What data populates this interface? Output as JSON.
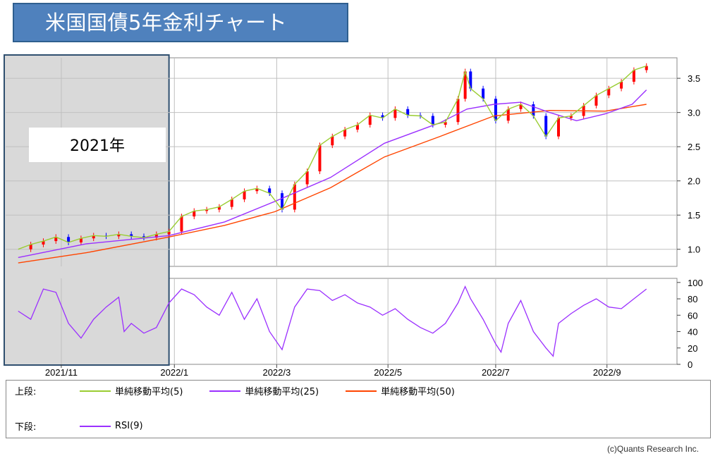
{
  "title": "米国国債5年金利チャート",
  "highlight_label": "2021年",
  "legend": {
    "upper_key": "上段:",
    "lower_key": "下段:",
    "upper_items": [
      {
        "label": "単純移動平均(5)",
        "color": "#9acd32"
      },
      {
        "label": "単純移動平均(25)",
        "color": "#9b30ff"
      },
      {
        "label": "単純移動平均(50)",
        "color": "#ff4500"
      }
    ],
    "lower_items": [
      {
        "label": "RSI(9)",
        "color": "#9b30ff"
      }
    ]
  },
  "credit": "(c)Quants Research Inc.",
  "colors": {
    "up_candle": "#ff0000",
    "down_candle": "#0000ff",
    "ma5": "#9acd32",
    "ma25": "#9b30ff",
    "ma50": "#ff4500",
    "rsi": "#9b30ff",
    "highlight": "#d9d9d9",
    "grid": "#c0c0c0"
  },
  "chart_data": [
    {
      "type": "line",
      "subtype": "candlestick_with_moving_averages",
      "x_ticks": [
        "2021/11",
        "2022/1",
        "2022/3",
        "2022/5",
        "2022/7",
        "2022/9"
      ],
      "x_tick_dates": [
        "2021-11-01",
        "2022-01-03",
        "2022-03-01",
        "2022-05-02",
        "2022-07-01",
        "2022-09-01"
      ],
      "x_range": [
        "2021-10-01",
        "2022-10-10"
      ],
      "y_ticks": [
        1.0,
        1.5,
        2.0,
        2.5,
        3.0,
        3.5
      ],
      "ylim": [
        0.75,
        3.8
      ],
      "highlight_range": [
        "2021-10-01",
        "2021-12-31"
      ],
      "close_series": {
        "name": "5年金利",
        "points": [
          [
            "2021-10-08",
            1.0
          ],
          [
            "2021-10-15",
            1.07
          ],
          [
            "2021-10-22",
            1.12
          ],
          [
            "2021-10-29",
            1.18
          ],
          [
            "2021-11-05",
            1.1
          ],
          [
            "2021-11-12",
            1.16
          ],
          [
            "2021-11-19",
            1.2
          ],
          [
            "2021-11-26",
            1.19
          ],
          [
            "2021-12-03",
            1.22
          ],
          [
            "2021-12-10",
            1.19
          ],
          [
            "2021-12-17",
            1.17
          ],
          [
            "2021-12-24",
            1.22
          ],
          [
            "2021-12-31",
            1.26
          ],
          [
            "2022-01-07",
            1.48
          ],
          [
            "2022-01-14",
            1.56
          ],
          [
            "2022-01-21",
            1.58
          ],
          [
            "2022-01-28",
            1.62
          ],
          [
            "2022-02-04",
            1.73
          ],
          [
            "2022-02-11",
            1.85
          ],
          [
            "2022-02-18",
            1.89
          ],
          [
            "2022-02-25",
            1.82
          ],
          [
            "2022-03-04",
            1.58
          ],
          [
            "2022-03-11",
            1.95
          ],
          [
            "2022-03-18",
            2.14
          ],
          [
            "2022-03-25",
            2.52
          ],
          [
            "2022-04-01",
            2.65
          ],
          [
            "2022-04-08",
            2.75
          ],
          [
            "2022-04-15",
            2.82
          ],
          [
            "2022-04-22",
            2.96
          ],
          [
            "2022-04-29",
            2.92
          ],
          [
            "2022-05-06",
            3.05
          ],
          [
            "2022-05-13",
            2.96
          ],
          [
            "2022-05-20",
            2.95
          ],
          [
            "2022-05-27",
            2.82
          ],
          [
            "2022-06-03",
            2.86
          ],
          [
            "2022-06-10",
            3.2
          ],
          [
            "2022-06-14",
            3.6
          ],
          [
            "2022-06-17",
            3.35
          ],
          [
            "2022-06-24",
            3.2
          ],
          [
            "2022-07-01",
            2.88
          ],
          [
            "2022-07-08",
            3.05
          ],
          [
            "2022-07-15",
            3.12
          ],
          [
            "2022-07-22",
            2.95
          ],
          [
            "2022-07-29",
            2.65
          ],
          [
            "2022-08-05",
            2.92
          ],
          [
            "2022-08-12",
            2.95
          ],
          [
            "2022-08-19",
            3.1
          ],
          [
            "2022-08-26",
            3.25
          ],
          [
            "2022-09-02",
            3.35
          ],
          [
            "2022-09-09",
            3.45
          ],
          [
            "2022-09-16",
            3.62
          ],
          [
            "2022-09-23",
            3.68
          ]
        ]
      },
      "series": [
        {
          "name": "単純移動平均(5)",
          "style": "follows_close"
        },
        {
          "name": "単純移動平均(25)",
          "points": [
            [
              "2021-10-08",
              0.88
            ],
            [
              "2021-11-15",
              1.08
            ],
            [
              "2021-12-31",
              1.2
            ],
            [
              "2022-01-31",
              1.4
            ],
            [
              "2022-02-28",
              1.7
            ],
            [
              "2022-03-31",
              2.05
            ],
            [
              "2022-04-30",
              2.55
            ],
            [
              "2022-05-31",
              2.85
            ],
            [
              "2022-06-15",
              3.05
            ],
            [
              "2022-06-30",
              3.12
            ],
            [
              "2022-07-15",
              3.15
            ],
            [
              "2022-07-31",
              3.0
            ],
            [
              "2022-08-15",
              2.88
            ],
            [
              "2022-08-31",
              2.98
            ],
            [
              "2022-09-15",
              3.12
            ],
            [
              "2022-09-23",
              3.33
            ]
          ]
        },
        {
          "name": "単純移動平均(50)",
          "points": [
            [
              "2021-10-08",
              0.8
            ],
            [
              "2021-11-15",
              0.95
            ],
            [
              "2021-12-31",
              1.18
            ],
            [
              "2022-01-31",
              1.35
            ],
            [
              "2022-02-28",
              1.55
            ],
            [
              "2022-03-31",
              1.9
            ],
            [
              "2022-04-30",
              2.35
            ],
            [
              "2022-05-31",
              2.65
            ],
            [
              "2022-06-30",
              2.95
            ],
            [
              "2022-07-31",
              3.03
            ],
            [
              "2022-08-31",
              3.02
            ],
            [
              "2022-09-23",
              3.12
            ]
          ]
        }
      ]
    },
    {
      "type": "line",
      "subtype": "oscillator",
      "y_ticks": [
        0,
        20,
        40,
        60,
        80,
        100
      ],
      "ylim": [
        0,
        105
      ],
      "series": [
        {
          "name": "RSI(9)",
          "points": [
            [
              "2021-10-08",
              65
            ],
            [
              "2021-10-15",
              55
            ],
            [
              "2021-10-22",
              92
            ],
            [
              "2021-10-29",
              88
            ],
            [
              "2021-11-05",
              50
            ],
            [
              "2021-11-12",
              32
            ],
            [
              "2021-11-19",
              55
            ],
            [
              "2021-11-26",
              70
            ],
            [
              "2021-12-03",
              82
            ],
            [
              "2021-12-06",
              40
            ],
            [
              "2021-12-10",
              50
            ],
            [
              "2021-12-17",
              38
            ],
            [
              "2021-12-24",
              45
            ],
            [
              "2021-12-31",
              75
            ],
            [
              "2022-01-07",
              92
            ],
            [
              "2022-01-14",
              85
            ],
            [
              "2022-01-21",
              70
            ],
            [
              "2022-01-28",
              60
            ],
            [
              "2022-02-04",
              88
            ],
            [
              "2022-02-11",
              55
            ],
            [
              "2022-02-18",
              80
            ],
            [
              "2022-02-25",
              40
            ],
            [
              "2022-03-04",
              18
            ],
            [
              "2022-03-11",
              70
            ],
            [
              "2022-03-18",
              92
            ],
            [
              "2022-03-25",
              90
            ],
            [
              "2022-04-01",
              78
            ],
            [
              "2022-04-08",
              85
            ],
            [
              "2022-04-15",
              75
            ],
            [
              "2022-04-22",
              70
            ],
            [
              "2022-04-29",
              60
            ],
            [
              "2022-05-06",
              68
            ],
            [
              "2022-05-13",
              55
            ],
            [
              "2022-05-20",
              45
            ],
            [
              "2022-05-27",
              38
            ],
            [
              "2022-06-03",
              50
            ],
            [
              "2022-06-10",
              75
            ],
            [
              "2022-06-14",
              95
            ],
            [
              "2022-06-17",
              80
            ],
            [
              "2022-06-24",
              55
            ],
            [
              "2022-07-01",
              25
            ],
            [
              "2022-07-04",
              15
            ],
            [
              "2022-07-08",
              50
            ],
            [
              "2022-07-15",
              78
            ],
            [
              "2022-07-22",
              40
            ],
            [
              "2022-07-29",
              20
            ],
            [
              "2022-08-02",
              10
            ],
            [
              "2022-08-05",
              50
            ],
            [
              "2022-08-12",
              62
            ],
            [
              "2022-08-19",
              72
            ],
            [
              "2022-08-26",
              80
            ],
            [
              "2022-09-02",
              70
            ],
            [
              "2022-09-09",
              68
            ],
            [
              "2022-09-16",
              80
            ],
            [
              "2022-09-23",
              92
            ]
          ]
        }
      ]
    }
  ]
}
